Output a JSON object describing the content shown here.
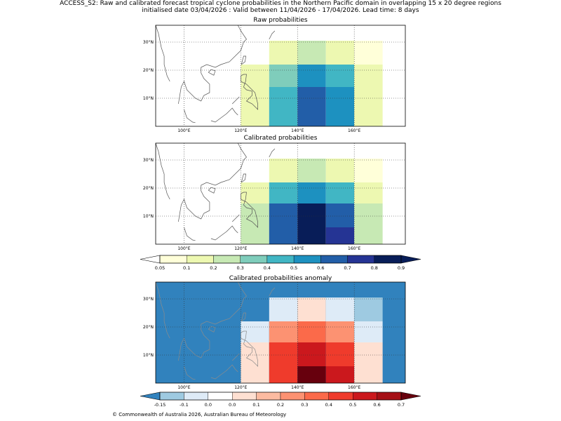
{
  "header": {
    "title": "ACCESS_S2: Raw and calibrated forecast tropical cyclone probabilities in the Northern Pacific domain in overlapping 15 x 20 degree regions",
    "subtitle": "initialised date 03/04/2026 :  Valid between 11/04/2026 - 17/04/2026. Lead time: 8 days"
  },
  "footer": {
    "copyright": "© Commonwealth of Australia 2026, Australian Bureau of Meteorology"
  },
  "chart_data": [
    {
      "type": "heatmap",
      "title": "Raw probabilities",
      "xlim": [
        90,
        178
      ],
      "ylim": [
        0,
        36
      ],
      "x_ticks": [
        100,
        120,
        140,
        160
      ],
      "y_ticks": [
        10,
        20,
        30
      ],
      "x_tick_labels": [
        "100°E",
        "120°E",
        "140°E",
        "160°E"
      ],
      "y_tick_labels": [
        "10°N",
        "20°N",
        "30°N"
      ],
      "grid": true,
      "cells": [
        {
          "lon": [
            120,
            130
          ],
          "lat": [
            0,
            9.5
          ],
          "value": 0.15
        },
        {
          "lon": [
            130,
            140
          ],
          "lat": [
            0,
            9.5
          ],
          "value": 0.45
        },
        {
          "lon": [
            140,
            150
          ],
          "lat": [
            0,
            9.5
          ],
          "value": 0.65
        },
        {
          "lon": [
            150,
            160
          ],
          "lat": [
            0,
            9.5
          ],
          "value": 0.55
        },
        {
          "lon": [
            160,
            170
          ],
          "lat": [
            0,
            9.5
          ],
          "value": 0.15
        },
        {
          "lon": [
            120,
            130
          ],
          "lat": [
            9.5,
            14
          ],
          "value": 0.15
        },
        {
          "lon": [
            130,
            140
          ],
          "lat": [
            9.5,
            14
          ],
          "value": 0.45
        },
        {
          "lon": [
            140,
            150
          ],
          "lat": [
            9.5,
            14
          ],
          "value": 0.65
        },
        {
          "lon": [
            150,
            160
          ],
          "lat": [
            9.5,
            14
          ],
          "value": 0.55
        },
        {
          "lon": [
            160,
            170
          ],
          "lat": [
            9.5,
            14
          ],
          "value": 0.15
        },
        {
          "lon": [
            120,
            130
          ],
          "lat": [
            14,
            22
          ],
          "value": 0.15
        },
        {
          "lon": [
            130,
            140
          ],
          "lat": [
            14,
            22
          ],
          "value": 0.35
        },
        {
          "lon": [
            140,
            150
          ],
          "lat": [
            14,
            22
          ],
          "value": 0.55
        },
        {
          "lon": [
            150,
            160
          ],
          "lat": [
            14,
            22
          ],
          "value": 0.45
        },
        {
          "lon": [
            160,
            170
          ],
          "lat": [
            14,
            22
          ],
          "value": 0.15
        },
        {
          "lon": [
            130,
            140
          ],
          "lat": [
            22,
            30.5
          ],
          "value": 0.15
        },
        {
          "lon": [
            140,
            150
          ],
          "lat": [
            22,
            30.5
          ],
          "value": 0.25
        },
        {
          "lon": [
            150,
            160
          ],
          "lat": [
            22,
            30.5
          ],
          "value": 0.15
        },
        {
          "lon": [
            160,
            170
          ],
          "lat": [
            22,
            30.5
          ],
          "value": 0.07
        }
      ]
    },
    {
      "type": "heatmap",
      "title": "Calibrated probabilities",
      "xlim": [
        90,
        178
      ],
      "ylim": [
        0,
        36
      ],
      "x_ticks": [
        100,
        120,
        140,
        160
      ],
      "y_ticks": [
        10,
        20,
        30
      ],
      "x_tick_labels": [
        "100°E",
        "120°E",
        "140°E",
        "160°E"
      ],
      "y_tick_labels": [
        "10°N",
        "20°N",
        "30°N"
      ],
      "grid": true,
      "cells": [
        {
          "lon": [
            120,
            130
          ],
          "lat": [
            0,
            6
          ],
          "value": 0.25
        },
        {
          "lon": [
            130,
            140
          ],
          "lat": [
            0,
            6
          ],
          "value": 0.65
        },
        {
          "lon": [
            140,
            150
          ],
          "lat": [
            0,
            6
          ],
          "value": 0.85
        },
        {
          "lon": [
            150,
            160
          ],
          "lat": [
            0,
            6
          ],
          "value": 0.75
        },
        {
          "lon": [
            160,
            170
          ],
          "lat": [
            0,
            6
          ],
          "value": 0.25
        },
        {
          "lon": [
            120,
            130
          ],
          "lat": [
            6,
            14.5
          ],
          "value": 0.25
        },
        {
          "lon": [
            130,
            140
          ],
          "lat": [
            6,
            14.5
          ],
          "value": 0.65
        },
        {
          "lon": [
            140,
            150
          ],
          "lat": [
            6,
            14.5
          ],
          "value": 0.85
        },
        {
          "lon": [
            150,
            160
          ],
          "lat": [
            6,
            14.5
          ],
          "value": 0.65
        },
        {
          "lon": [
            160,
            170
          ],
          "lat": [
            6,
            14.5
          ],
          "value": 0.25
        },
        {
          "lon": [
            120,
            130
          ],
          "lat": [
            14.5,
            22
          ],
          "value": 0.15
        },
        {
          "lon": [
            130,
            140
          ],
          "lat": [
            14.5,
            22
          ],
          "value": 0.45
        },
        {
          "lon": [
            140,
            150
          ],
          "lat": [
            14.5,
            22
          ],
          "value": 0.55
        },
        {
          "lon": [
            150,
            160
          ],
          "lat": [
            14.5,
            22
          ],
          "value": 0.45
        },
        {
          "lon": [
            160,
            170
          ],
          "lat": [
            14.5,
            22
          ],
          "value": 0.15
        },
        {
          "lon": [
            130,
            140
          ],
          "lat": [
            22,
            30.5
          ],
          "value": 0.15
        },
        {
          "lon": [
            140,
            150
          ],
          "lat": [
            22,
            30.5
          ],
          "value": 0.25
        },
        {
          "lon": [
            150,
            160
          ],
          "lat": [
            22,
            30.5
          ],
          "value": 0.15
        },
        {
          "lon": [
            160,
            170
          ],
          "lat": [
            22,
            30.5
          ],
          "value": 0.07
        }
      ]
    },
    {
      "type": "colorbar",
      "name": "probability",
      "extend": "both",
      "bounds": [
        0.05,
        0.1,
        0.2,
        0.3,
        0.4,
        0.5,
        0.6,
        0.7,
        0.8,
        0.9
      ],
      "tick_labels": [
        "0.05",
        "0.1",
        "0.2",
        "0.3",
        "0.4",
        "0.5",
        "0.6",
        "0.7",
        "0.8",
        "0.9"
      ],
      "colors": [
        "#ffffd9",
        "#edf8b1",
        "#c7e9b4",
        "#7fcdbb",
        "#41b6c4",
        "#1d91c0",
        "#225ea8",
        "#253494",
        "#081d58"
      ],
      "under_color": "#ffffff",
      "over_color": "#081d58"
    },
    {
      "type": "heatmap",
      "title": "Calibrated probabilities anomaly",
      "xlim": [
        90,
        178
      ],
      "ylim": [
        0,
        36
      ],
      "x_ticks": [
        100,
        120,
        140,
        160
      ],
      "y_ticks": [
        10,
        20,
        30
      ],
      "x_tick_labels": [
        "100°E",
        "120°E",
        "140°E",
        "160°E"
      ],
      "y_tick_labels": [
        "10°N",
        "20°N",
        "30°N"
      ],
      "grid": true,
      "background_value": -0.2,
      "cells": [
        {
          "lon": [
            120,
            130
          ],
          "lat": [
            0,
            6
          ],
          "value": 0.05
        },
        {
          "lon": [
            130,
            140
          ],
          "lat": [
            0,
            6
          ],
          "value": 0.45
        },
        {
          "lon": [
            140,
            150
          ],
          "lat": [
            0,
            6
          ],
          "value": 0.75
        },
        {
          "lon": [
            150,
            160
          ],
          "lat": [
            0,
            6
          ],
          "value": 0.55
        },
        {
          "lon": [
            160,
            170
          ],
          "lat": [
            0,
            6
          ],
          "value": 0.05
        },
        {
          "lon": [
            120,
            130
          ],
          "lat": [
            6,
            14.5
          ],
          "value": 0.05
        },
        {
          "lon": [
            130,
            140
          ],
          "lat": [
            6,
            14.5
          ],
          "value": 0.45
        },
        {
          "lon": [
            140,
            150
          ],
          "lat": [
            6,
            14.5
          ],
          "value": 0.55
        },
        {
          "lon": [
            150,
            160
          ],
          "lat": [
            6,
            14.5
          ],
          "value": 0.45
        },
        {
          "lon": [
            160,
            170
          ],
          "lat": [
            6,
            14.5
          ],
          "value": 0.05
        },
        {
          "lon": [
            120,
            130
          ],
          "lat": [
            14.5,
            22
          ],
          "value": -0.05
        },
        {
          "lon": [
            130,
            140
          ],
          "lat": [
            14.5,
            22
          ],
          "value": 0.25
        },
        {
          "lon": [
            140,
            150
          ],
          "lat": [
            14.5,
            22
          ],
          "value": 0.35
        },
        {
          "lon": [
            150,
            160
          ],
          "lat": [
            14.5,
            22
          ],
          "value": 0.25
        },
        {
          "lon": [
            160,
            170
          ],
          "lat": [
            14.5,
            22
          ],
          "value": -0.05
        },
        {
          "lon": [
            130,
            140
          ],
          "lat": [
            22,
            30.5
          ],
          "value": -0.05
        },
        {
          "lon": [
            140,
            150
          ],
          "lat": [
            22,
            30.5
          ],
          "value": 0.05
        },
        {
          "lon": [
            150,
            160
          ],
          "lat": [
            22,
            30.5
          ],
          "value": -0.05
        },
        {
          "lon": [
            160,
            170
          ],
          "lat": [
            22,
            30.5
          ],
          "value": -0.12
        }
      ]
    },
    {
      "type": "colorbar",
      "name": "anomaly",
      "extend": "both",
      "bounds": [
        -0.15,
        -0.1,
        0.0,
        0.0,
        0.1,
        0.2,
        0.3,
        0.4,
        0.5,
        0.6,
        0.7
      ],
      "tick_labels": [
        "-0.15",
        "-0.1",
        "0.0",
        "0.0",
        "0.1",
        "0.2",
        "0.3",
        "0.4",
        "0.5",
        "0.6",
        "0.7"
      ],
      "colors": [
        "#9ecae1",
        "#deebf7",
        "#ffffff",
        "#fee0d2",
        "#fcbba1",
        "#fc9272",
        "#fb6a4a",
        "#ef3b2c",
        "#cb181d",
        "#a50f15"
      ],
      "under_color": "#3182bd",
      "over_color": "#67000d"
    }
  ]
}
